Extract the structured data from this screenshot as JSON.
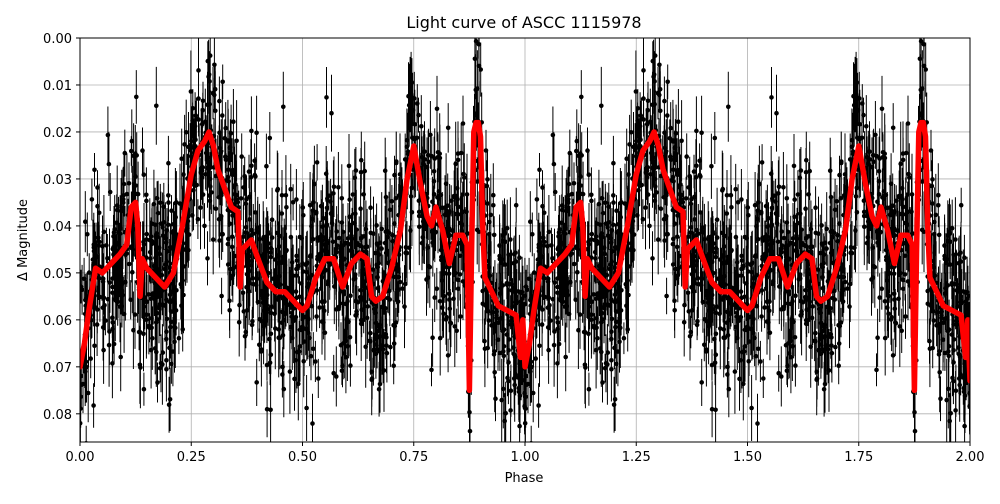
{
  "chart_data": {
    "type": "scatter",
    "title": "Light curve of ASCC 1115978",
    "xlabel": "Phase",
    "ylabel": "Δ Magnitude",
    "xlim": [
      0.0,
      2.0
    ],
    "ylim": [
      0.0,
      0.086
    ],
    "y_inverted": true,
    "grid": true,
    "xticks": [
      0.0,
      0.25,
      0.5,
      0.75,
      1.0,
      1.25,
      1.5,
      1.75,
      2.0
    ],
    "xtick_labels": [
      "0.00",
      "0.25",
      "0.50",
      "0.75",
      "1.00",
      "1.25",
      "1.50",
      "1.75",
      "2.00"
    ],
    "yticks": [
      0.0,
      0.01,
      0.02,
      0.03,
      0.04,
      0.05,
      0.06,
      0.07,
      0.08
    ],
    "ytick_labels": [
      "0.00",
      "0.01",
      "0.02",
      "0.03",
      "0.04",
      "0.05",
      "0.06",
      "0.07",
      "0.08"
    ],
    "series": [
      {
        "style": "error-bar points",
        "color": "#000000",
        "note_points": "approximately 3000 noisy photometric points with error bars (mirrored over two phase cycles), scattered around the model curve with spread of roughly ±0.02 mag"
      },
      {
        "style": "line",
        "color": "#ff0000",
        "x": [
          0.0,
          0.01,
          0.02,
          0.035,
          0.05,
          0.07,
          0.09,
          0.105,
          0.115,
          0.125,
          0.13,
          0.135,
          0.14,
          0.15,
          0.17,
          0.19,
          0.21,
          0.23,
          0.25,
          0.265,
          0.28,
          0.29,
          0.3,
          0.31,
          0.325,
          0.34,
          0.355,
          0.36,
          0.365,
          0.375,
          0.385,
          0.4,
          0.42,
          0.44,
          0.46,
          0.48,
          0.5,
          0.51,
          0.53,
          0.55,
          0.57,
          0.59,
          0.61,
          0.63,
          0.645,
          0.655,
          0.665,
          0.68,
          0.7,
          0.72,
          0.735,
          0.75,
          0.765,
          0.78,
          0.79,
          0.8,
          0.815,
          0.83,
          0.845,
          0.86,
          0.87,
          0.875,
          0.88,
          0.885,
          0.89,
          0.895,
          0.9,
          0.905,
          0.91,
          0.92,
          0.94,
          0.96,
          0.98,
          0.99,
          0.995,
          1.0,
          1.01,
          1.02,
          1.035,
          1.05,
          1.07,
          1.09,
          1.105,
          1.115,
          1.125,
          1.13,
          1.135,
          1.14,
          1.15,
          1.17,
          1.19,
          1.21,
          1.23,
          1.25,
          1.265,
          1.28,
          1.29,
          1.3,
          1.31,
          1.325,
          1.34,
          1.355,
          1.36,
          1.365,
          1.375,
          1.385,
          1.4,
          1.42,
          1.44,
          1.46,
          1.48,
          1.5,
          1.51,
          1.53,
          1.55,
          1.57,
          1.59,
          1.61,
          1.63,
          1.645,
          1.655,
          1.665,
          1.68,
          1.7,
          1.72,
          1.735,
          1.75,
          1.765,
          1.78,
          1.79,
          1.8,
          1.815,
          1.83,
          1.845,
          1.86,
          1.87,
          1.875,
          1.88,
          1.885,
          1.89,
          1.895,
          1.9,
          1.905,
          1.91,
          1.92,
          1.94,
          1.96,
          1.98,
          1.99,
          1.995,
          2.0
        ],
        "y": [
          0.07,
          0.065,
          0.058,
          0.049,
          0.05,
          0.048,
          0.046,
          0.044,
          0.036,
          0.035,
          0.04,
          0.055,
          0.047,
          0.049,
          0.051,
          0.053,
          0.05,
          0.04,
          0.029,
          0.024,
          0.022,
          0.02,
          0.023,
          0.028,
          0.032,
          0.036,
          0.037,
          0.053,
          0.045,
          0.044,
          0.043,
          0.047,
          0.052,
          0.054,
          0.054,
          0.056,
          0.058,
          0.057,
          0.051,
          0.047,
          0.047,
          0.053,
          0.048,
          0.046,
          0.047,
          0.055,
          0.056,
          0.055,
          0.049,
          0.041,
          0.03,
          0.023,
          0.031,
          0.038,
          0.04,
          0.036,
          0.041,
          0.048,
          0.042,
          0.042,
          0.044,
          0.075,
          0.045,
          0.02,
          0.018,
          0.018,
          0.021,
          0.04,
          0.051,
          0.053,
          0.057,
          0.058,
          0.059,
          0.068,
          0.06,
          0.07,
          0.065,
          0.058,
          0.049,
          0.05,
          0.048,
          0.046,
          0.044,
          0.036,
          0.035,
          0.04,
          0.055,
          0.047,
          0.049,
          0.051,
          0.053,
          0.05,
          0.04,
          0.029,
          0.024,
          0.022,
          0.02,
          0.023,
          0.028,
          0.032,
          0.036,
          0.037,
          0.053,
          0.045,
          0.044,
          0.043,
          0.047,
          0.052,
          0.054,
          0.054,
          0.056,
          0.058,
          0.057,
          0.051,
          0.047,
          0.047,
          0.053,
          0.048,
          0.046,
          0.047,
          0.055,
          0.056,
          0.055,
          0.049,
          0.041,
          0.03,
          0.023,
          0.031,
          0.038,
          0.04,
          0.036,
          0.041,
          0.048,
          0.042,
          0.042,
          0.044,
          0.075,
          0.045,
          0.02,
          0.018,
          0.018,
          0.021,
          0.04,
          0.051,
          0.053,
          0.057,
          0.058,
          0.059,
          0.068,
          0.06,
          0.073
        ]
      }
    ]
  }
}
